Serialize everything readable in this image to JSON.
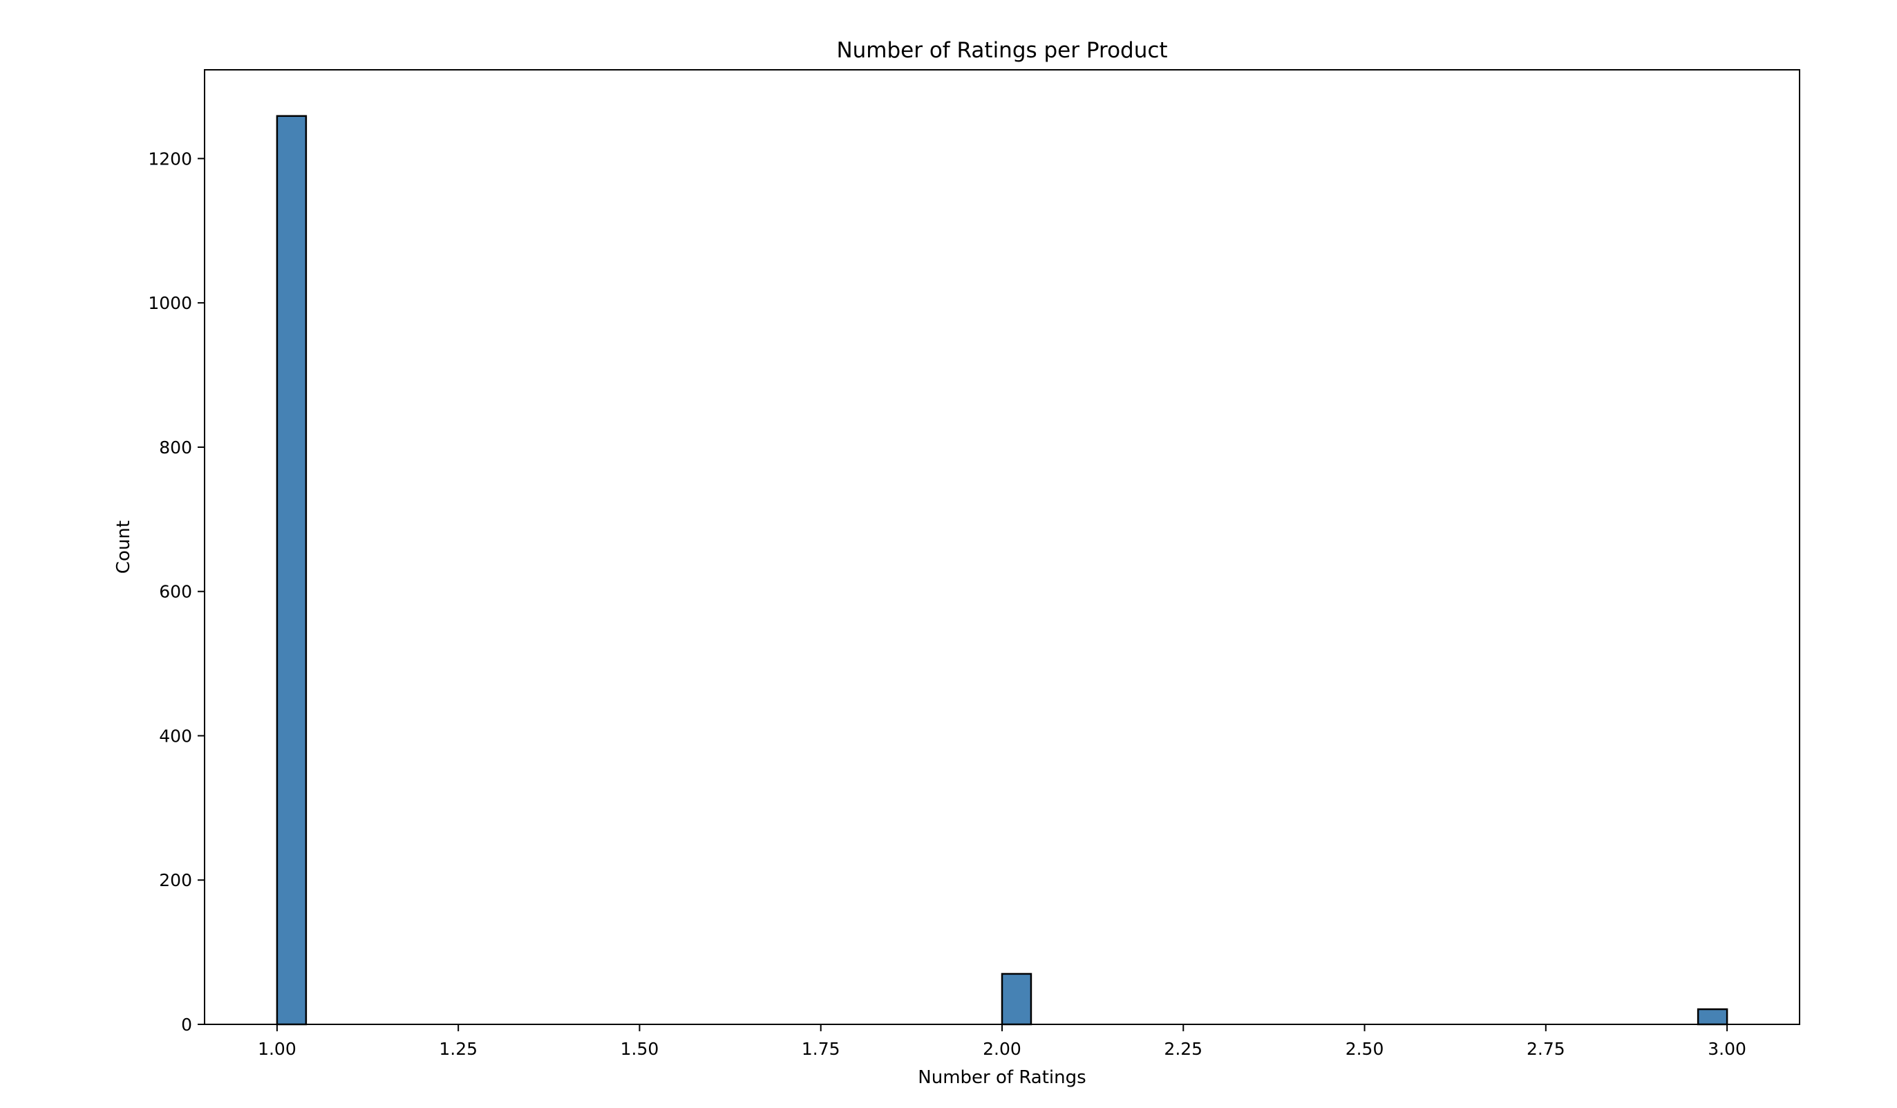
{
  "chart_data": {
    "type": "bar",
    "title": "Number of Ratings per Product",
    "xlabel": "Number of Ratings",
    "ylabel": "Count",
    "xlim": [
      0.9,
      3.1
    ],
    "ylim": [
      0,
      1323
    ],
    "x_ticks": [
      1.0,
      1.25,
      1.5,
      1.75,
      2.0,
      2.25,
      2.5,
      2.75,
      3.0
    ],
    "x_tick_labels": [
      "1.00",
      "1.25",
      "1.50",
      "1.75",
      "2.00",
      "2.25",
      "2.50",
      "2.75",
      "3.00"
    ],
    "y_ticks": [
      0,
      200,
      400,
      600,
      800,
      1000,
      1200
    ],
    "y_tick_labels": [
      "0",
      "200",
      "400",
      "600",
      "800",
      "1000",
      "1200"
    ],
    "bins": [
      {
        "x_start": 1.0,
        "x_end": 1.04,
        "count": 1259
      },
      {
        "x_start": 2.0,
        "x_end": 2.04,
        "count": 70
      },
      {
        "x_start": 2.96,
        "x_end": 3.0,
        "count": 21
      }
    ],
    "bar_color": "#4682b4",
    "edge_color": "#000000",
    "grid": false,
    "legend": "none"
  }
}
